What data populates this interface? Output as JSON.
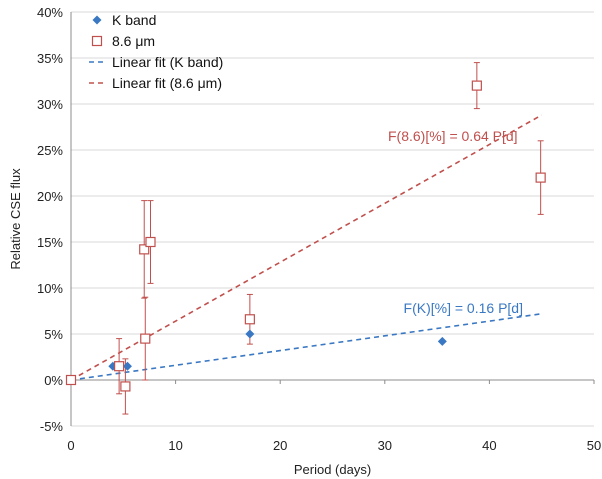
{
  "chart_data": {
    "type": "scatter",
    "xlabel": "Period (days)",
    "ylabel": "Relative CSE flux",
    "xlim": [
      0,
      50
    ],
    "ylim": [
      -5,
      40
    ],
    "x_ticks": [
      0,
      10,
      20,
      30,
      40,
      50
    ],
    "y_ticks": [
      -5,
      0,
      5,
      10,
      15,
      20,
      25,
      30,
      35,
      40
    ],
    "x_tick_labels": [
      "0",
      "10",
      "20",
      "30",
      "40",
      "50"
    ],
    "y_tick_labels": [
      "-5%",
      "0%",
      "5%",
      "10%",
      "15%",
      "20%",
      "25%",
      "30%",
      "35%",
      "40%"
    ],
    "grid": "horizontal",
    "legend_position": "top-left",
    "series": [
      {
        "name": "K band",
        "marker": "diamond",
        "color": "#3a78c3",
        "points": [
          {
            "x": 0,
            "y": 0
          },
          {
            "x": 4.0,
            "y": 1.5
          },
          {
            "x": 5.4,
            "y": 1.5
          },
          {
            "x": 17.1,
            "y": 5.0
          },
          {
            "x": 35.5,
            "y": 4.2
          }
        ]
      },
      {
        "name": "8.6 μm",
        "marker": "open-square",
        "color": "#c0504d",
        "points": [
          {
            "x": 0,
            "y": 0,
            "err": 0
          },
          {
            "x": 4.6,
            "y": 1.5,
            "err": 3.0
          },
          {
            "x": 5.2,
            "y": -0.7,
            "err": 3.0
          },
          {
            "x": 7.1,
            "y": 4.5,
            "err": 4.5
          },
          {
            "x": 7.0,
            "y": 14.2,
            "err": 5.3
          },
          {
            "x": 7.6,
            "y": 15.0,
            "err": 4.5
          },
          {
            "x": 17.1,
            "y": 6.6,
            "err": 2.7
          },
          {
            "x": 38.8,
            "y": 32.0,
            "err": 2.5
          },
          {
            "x": 44.9,
            "y": 22.0,
            "err": 4.0
          }
        ]
      }
    ],
    "fits": [
      {
        "name": "Linear fit (K band)",
        "slope": 0.16,
        "x_range": [
          0,
          45
        ],
        "color": "#3a78c3"
      },
      {
        "name": "Linear fit (8.6 μm)",
        "slope": 0.64,
        "x_range": [
          0,
          45
        ],
        "color": "#c0504d"
      }
    ],
    "annotations": [
      {
        "text": "F(8.6)[%] = 0.64 P[d]",
        "x": 36.5,
        "y": 26.0,
        "color": "#c0504d"
      },
      {
        "text": "F(K)[%] = 0.16 P[d]",
        "x": 37.5,
        "y": 7.3,
        "color": "#3a78c3"
      }
    ],
    "legend": [
      {
        "label": "K band",
        "kind": "diamond",
        "color": "#3a78c3"
      },
      {
        "label": "8.6 μm",
        "kind": "open-square",
        "color": "#c0504d"
      },
      {
        "label": "Linear fit (K band)",
        "kind": "dash",
        "color": "#3a78c3"
      },
      {
        "label": "Linear fit (8.6 μm)",
        "kind": "dash",
        "color": "#c0504d"
      }
    ]
  }
}
